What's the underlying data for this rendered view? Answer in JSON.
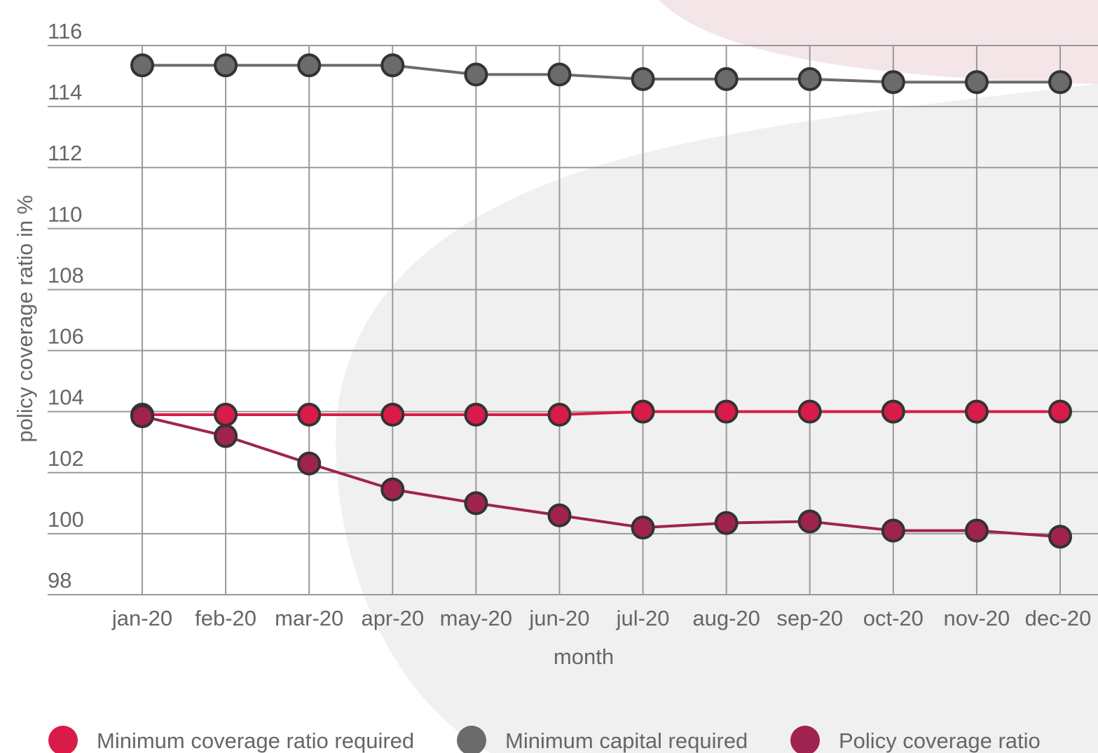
{
  "chart_data": {
    "type": "line",
    "x_label": "month",
    "y_label": "policy coverage ratio in %",
    "categories": [
      "jan-20",
      "feb-20",
      "mar-20",
      "apr-20",
      "may-20",
      "jun-20",
      "jul-20",
      "aug-20",
      "sep-20",
      "oct-20",
      "nov-20",
      "dec-20"
    ],
    "series": [
      {
        "name": "Minimum coverage ratio required",
        "color": "#d81b48",
        "values": [
          103.9,
          103.9,
          103.9,
          103.9,
          103.9,
          103.9,
          104.0,
          104.0,
          104.0,
          104.0,
          104.0,
          104.0
        ]
      },
      {
        "name": "Minimum capital required",
        "color": "#6b6b6b",
        "values": [
          115.35,
          115.35,
          115.35,
          115.35,
          115.05,
          115.05,
          114.9,
          114.9,
          114.9,
          114.8,
          114.8,
          114.8
        ]
      },
      {
        "name": "Policy coverage ratio",
        "color": "#a0234f",
        "values": [
          103.85,
          103.2,
          102.3,
          101.45,
          101.0,
          100.6,
          100.2,
          100.35,
          100.4,
          100.1,
          100.1,
          99.9
        ]
      }
    ],
    "ylim": [
      98,
      116
    ],
    "yticks": [
      98,
      100,
      102,
      104,
      106,
      108,
      110,
      112,
      114,
      116
    ],
    "grid": true
  }
}
